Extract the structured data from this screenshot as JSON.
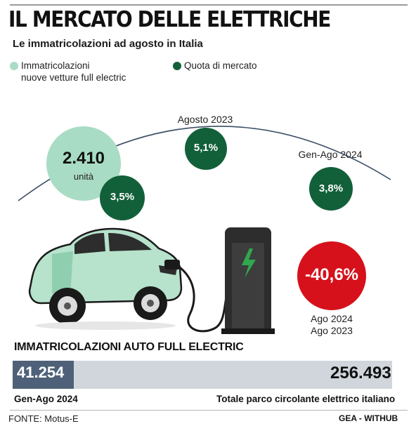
{
  "title": "IL MERCATO DELLE ELETTRICHE",
  "subtitle": "Le immatricolazioni ad agosto in Italia",
  "legend": {
    "registrations_line1": "Immatricolazioni",
    "registrations_line2": "nuove vetture full electric",
    "share": "Quota di mercato"
  },
  "periods": {
    "agosto_2023": "Agosto 2023",
    "gen_ago_2024": "Gen-Ago 2024"
  },
  "registrations": {
    "value": "2.410",
    "unit": "unità"
  },
  "market_share": {
    "current": "3,5%",
    "agosto_2023": "5,1%",
    "gen_ago_2024": "3,8%"
  },
  "change": {
    "value": "-40,6%",
    "label_line1": "Ago 2024",
    "label_line2": "Ago 2023"
  },
  "bar": {
    "title": "IMMATRICOLAZIONI AUTO FULL ELECTRIC",
    "left_value": "41.254",
    "right_value": "256.493",
    "left_label": "Gen-Ago 2024",
    "right_label": "Totale parco circolante elettrico italiano",
    "fill_fraction": 0.161
  },
  "source": "FONTE: Motus-E",
  "credit": "GEA - WITHUB",
  "colors": {
    "light_green": "#a9dcc4",
    "dark_green": "#12603a",
    "red": "#d6111b",
    "car_body": "#b7e2cc",
    "bar_fill": "#4e6178",
    "bar_bg": "#d0d6dc"
  }
}
